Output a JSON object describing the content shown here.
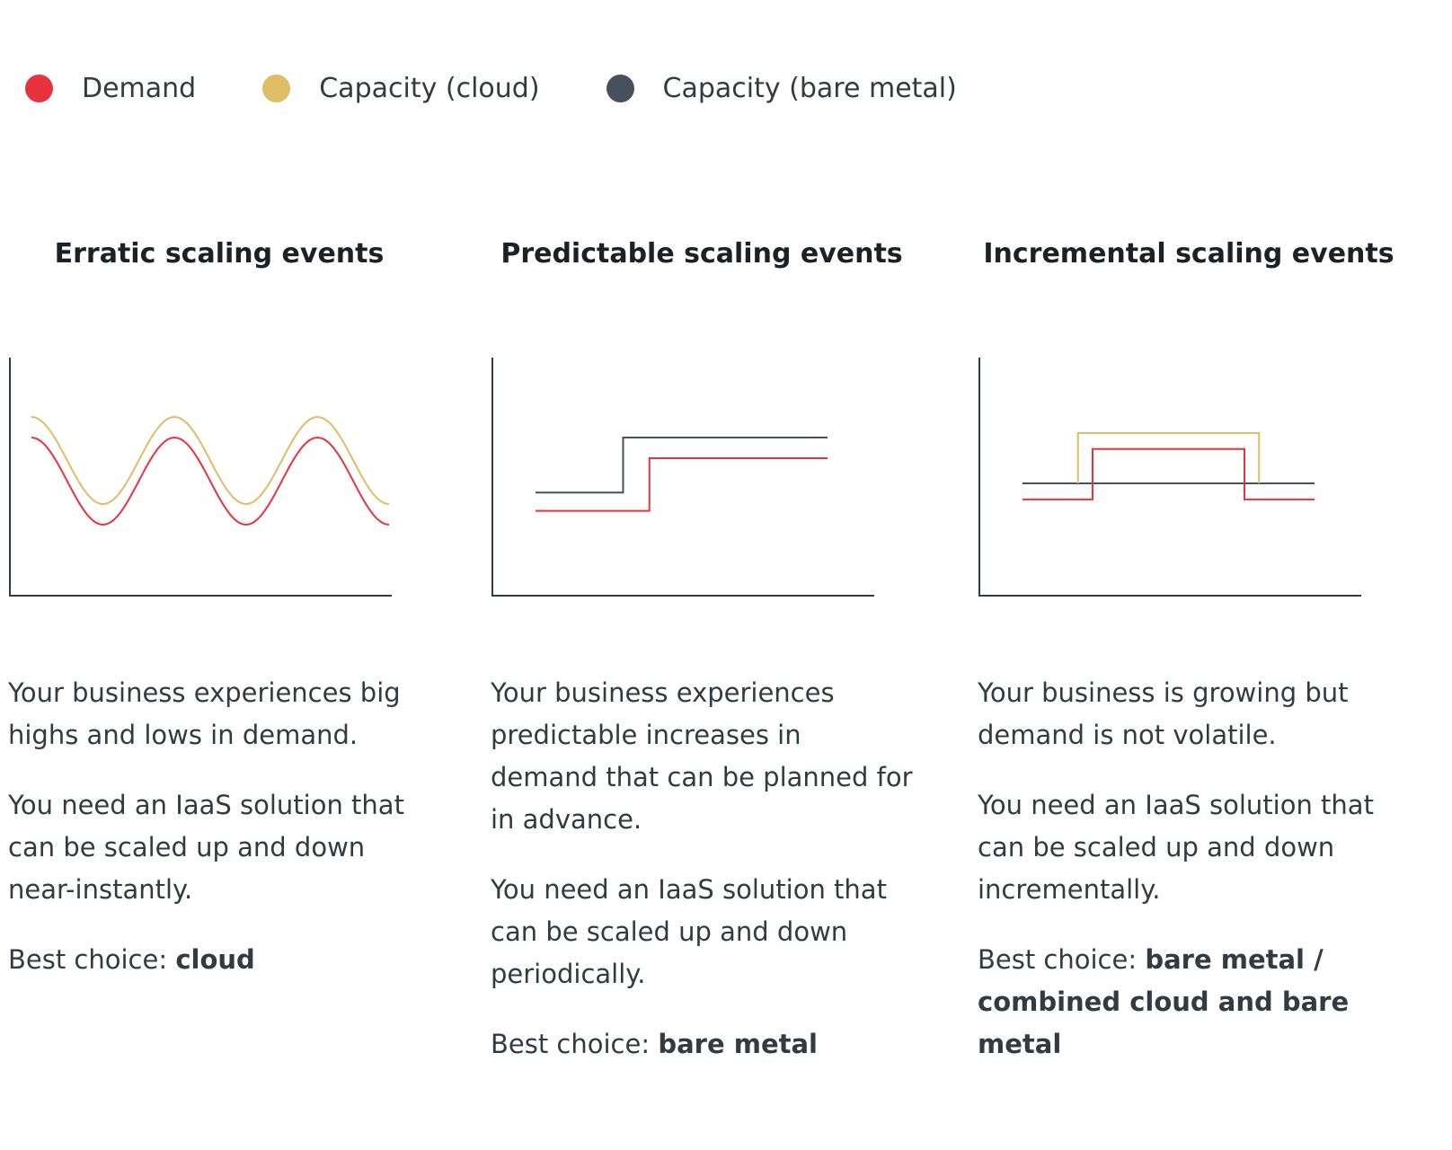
{
  "legend": [
    {
      "label": "Demand",
      "color": "#e8333f"
    },
    {
      "label": "Capacity (cloud)",
      "color": "#dfbd67"
    },
    {
      "label": "Capacity (bare metal)",
      "color": "#47515c"
    }
  ],
  "panels": [
    {
      "title": "Erratic scaling events",
      "description": "Your business experiences big highs and lows in demand.",
      "need": "You need an IaaS solution that can be scaled up and down near-instantly.",
      "best_prefix": "Best choice: ",
      "best_value": "cloud"
    },
    {
      "title": "Predictable scaling events",
      "description": "Your business experiences predictable increases in demand that can be planned for in advance.",
      "need": "You need an IaaS solution that can be scaled up and down periodically.",
      "best_prefix": "Best choice: ",
      "best_value": "bare metal"
    },
    {
      "title": "Incremental scaling events",
      "description": "Your business is growing but demand is not volatile.",
      "need": "You need an IaaS solution that can be scaled up and down incrementally.",
      "best_prefix": "Best choice: ",
      "best_value": "bare metal / combined cloud and bare metal"
    }
  ],
  "chart_data": [
    {
      "type": "line",
      "title": "Erratic scaling events",
      "xlabel": "",
      "ylabel": "",
      "grid": false,
      "series": [
        {
          "name": "Demand",
          "color": "#e8333f",
          "shape": "sine",
          "level": 0.5,
          "amplitude": 0.19,
          "cycles": 2.5
        },
        {
          "name": "Capacity (cloud)",
          "color": "#dfbd67",
          "shape": "sine",
          "level": 0.59,
          "amplitude": 0.19,
          "cycles": 2.5
        }
      ]
    },
    {
      "type": "line",
      "title": "Predictable scaling events",
      "xlabel": "",
      "ylabel": "",
      "grid": false,
      "series": [
        {
          "name": "Capacity (bare metal)",
          "color": "#47515c",
          "shape": "step",
          "x": [
            0,
            0.3,
            0.3,
            1
          ],
          "y": [
            0.45,
            0.45,
            0.69,
            0.69
          ]
        },
        {
          "name": "Demand",
          "color": "#e8333f",
          "shape": "step",
          "x": [
            0,
            0.39,
            0.39,
            1
          ],
          "y": [
            0.37,
            0.37,
            0.6,
            0.6
          ]
        }
      ]
    },
    {
      "type": "line",
      "title": "Incremental scaling events",
      "xlabel": "",
      "ylabel": "",
      "grid": false,
      "series": [
        {
          "name": "Capacity (bare metal)",
          "color": "#47515c",
          "shape": "step",
          "x": [
            0,
            0.19,
            0.19,
            0.81,
            0.81,
            1
          ],
          "y": [
            0.49,
            0.49,
            0.49,
            0.49,
            0.49,
            0.49
          ]
        },
        {
          "name": "Capacity (cloud)",
          "color": "#dfbd67",
          "shape": "step",
          "x": [
            0.19,
            0.19,
            0.81,
            0.81
          ],
          "y": [
            0.49,
            0.71,
            0.71,
            0.49
          ]
        },
        {
          "name": "Demand",
          "color": "#e8333f",
          "shape": "step",
          "x": [
            0,
            0.24,
            0.24,
            0.76,
            0.76,
            1
          ],
          "y": [
            0.42,
            0.42,
            0.64,
            0.64,
            0.42,
            0.42
          ]
        }
      ]
    }
  ]
}
